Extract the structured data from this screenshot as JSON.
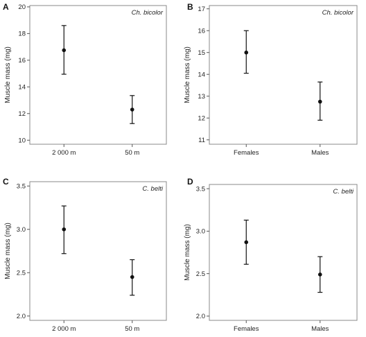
{
  "chart_data": [
    {
      "panel": "A",
      "species": "Ch. bicolor",
      "type": "scatter",
      "ylabel": "Muscle mass (mg)",
      "ylim": [
        9.7,
        20.1
      ],
      "yticks": [
        10,
        12,
        14,
        16,
        18,
        20
      ],
      "categories": [
        "2 000 m",
        "50 m"
      ],
      "values": [
        16.75,
        12.3
      ],
      "ci_lower": [
        14.95,
        11.25
      ],
      "ci_upper": [
        18.6,
        13.35
      ]
    },
    {
      "panel": "B",
      "species": "Ch. bicolor",
      "type": "scatter",
      "ylabel": "Muscle mass (mg)",
      "ylim": [
        10.8,
        17.15
      ],
      "yticks": [
        11,
        12,
        13,
        14,
        15,
        16,
        17
      ],
      "categories": [
        "Females",
        "Males"
      ],
      "values": [
        15.0,
        12.75
      ],
      "ci_lower": [
        14.05,
        11.9
      ],
      "ci_upper": [
        16.0,
        13.65
      ]
    },
    {
      "panel": "C",
      "species": "C. belti",
      "type": "scatter",
      "ylabel": "Muscle mass (mg)",
      "ylim": [
        1.95,
        3.55
      ],
      "yticks": [
        2.0,
        2.5,
        3.0,
        3.5
      ],
      "categories": [
        "2 000 m",
        "50 m"
      ],
      "values": [
        3.0,
        2.45
      ],
      "ci_lower": [
        2.72,
        2.24
      ],
      "ci_upper": [
        3.27,
        2.65
      ]
    },
    {
      "panel": "D",
      "species": "C. belti",
      "type": "scatter",
      "ylabel": "Muscle mass (mg)",
      "ylim": [
        1.95,
        3.55
      ],
      "yticks": [
        2.0,
        2.5,
        3.0,
        3.5
      ],
      "categories": [
        "Females",
        "Males"
      ],
      "values": [
        2.87,
        2.49
      ],
      "ci_lower": [
        2.61,
        2.28
      ],
      "ci_upper": [
        3.13,
        2.7
      ]
    }
  ]
}
